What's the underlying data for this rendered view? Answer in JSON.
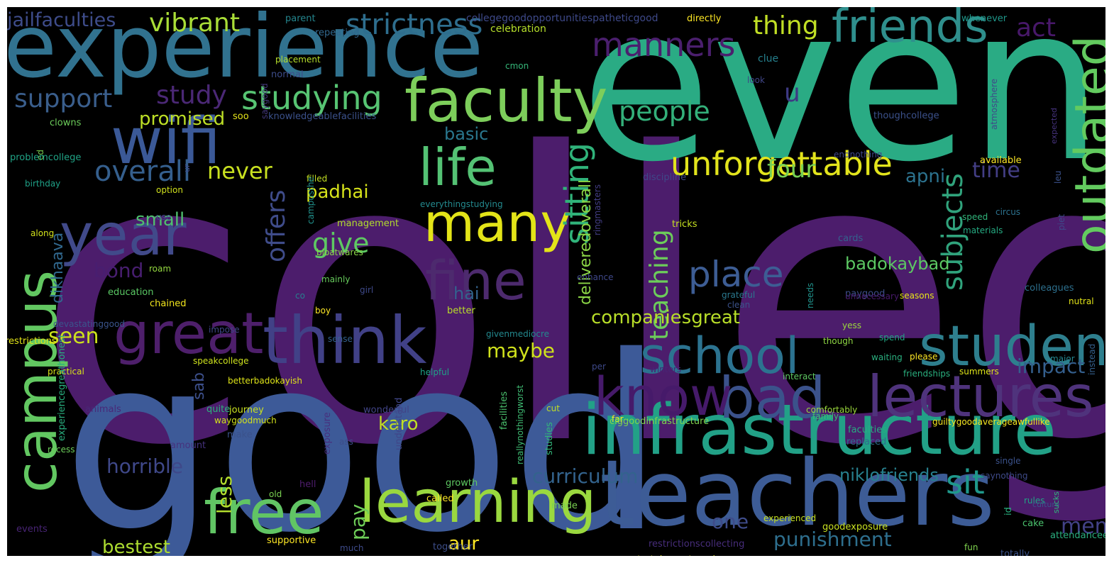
{
  "words": [
    {
      "text": "college",
      "color": "#4c1d6c"
    },
    {
      "text": "even",
      "color": "#2aab84"
    },
    {
      "text": "good",
      "color": "#3d5a98"
    },
    {
      "text": "experience",
      "color": "#31728f"
    },
    {
      "text": "teachers",
      "color": "#3d5c96"
    },
    {
      "text": "infrastructure",
      "color": "#22a187"
    },
    {
      "text": "faculty",
      "color": "#7dce5b"
    },
    {
      "text": "think",
      "color": "#414187"
    },
    {
      "text": "student",
      "color": "#2e7f8e"
    },
    {
      "text": "school",
      "color": "#2c7390"
    },
    {
      "text": "many",
      "color": "#e3e418"
    },
    {
      "text": "fine",
      "color": "#4d2a6e"
    },
    {
      "text": "wifi",
      "color": "#3b5997"
    },
    {
      "text": "life",
      "color": "#54c274"
    },
    {
      "text": "year",
      "color": "#414a8a"
    },
    {
      "text": "great",
      "color": "#4e1f6b"
    },
    {
      "text": "lectures",
      "color": "#4f337c"
    },
    {
      "text": "learning",
      "color": "#9ad83f"
    },
    {
      "text": "free",
      "color": "#61c564"
    },
    {
      "text": "bad",
      "color": "#3b528b"
    },
    {
      "text": "know",
      "color": "#461a6a"
    },
    {
      "text": "campus",
      "color": "#62c761"
    },
    {
      "text": "outdated",
      "color": "#63cb5f"
    },
    {
      "text": "friends",
      "color": "#2f8f8d"
    },
    {
      "text": "studying",
      "color": "#57c473"
    },
    {
      "text": "unforgettable",
      "color": "#e2e41c"
    },
    {
      "text": "place",
      "color": "#3d5d94"
    },
    {
      "text": "sitting",
      "color": "#30b37a"
    },
    {
      "text": "manners",
      "color": "#4b1f6e"
    },
    {
      "text": "strictness",
      "color": "#2e6e8e"
    },
    {
      "text": "vibrant",
      "color": "#a9dd37"
    },
    {
      "text": "jailfaculties",
      "color": "#3e4c8a"
    },
    {
      "text": "support",
      "color": "#3a5e8c"
    },
    {
      "text": "study",
      "color": "#4b2876"
    },
    {
      "text": "u",
      "color": "#3e3a84"
    },
    {
      "text": "people",
      "color": "#33b07a"
    },
    {
      "text": "thing",
      "color": "#c1df25"
    },
    {
      "text": "act",
      "color": "#48186a"
    },
    {
      "text": "overall",
      "color": "#355f8d"
    },
    {
      "text": "never",
      "color": "#c8e020"
    },
    {
      "text": "promised",
      "color": "#bddf26"
    },
    {
      "text": "basic",
      "color": "#2a778e"
    },
    {
      "text": "four",
      "color": "#75d054"
    },
    {
      "text": "time",
      "color": "#433e85"
    },
    {
      "text": "subjects",
      "color": "#30a37c"
    },
    {
      "text": "teaching",
      "color": "#6ccd5a"
    },
    {
      "text": "give",
      "color": "#5ec962"
    },
    {
      "text": "padhai",
      "color": "#d6e21a"
    },
    {
      "text": "small",
      "color": "#4fbf6e"
    },
    {
      "text": "offers",
      "color": "#3f4c8a"
    },
    {
      "text": "bond",
      "color": "#481e70"
    },
    {
      "text": "seen",
      "color": "#cde11d"
    },
    {
      "text": "hai",
      "color": "#33638d"
    },
    {
      "text": "apni",
      "color": "#2c728e"
    },
    {
      "text": "badokaybad",
      "color": "#5cc863"
    },
    {
      "text": "companiesgreat",
      "color": "#b8de29"
    },
    {
      "text": "impact",
      "color": "#345f8d"
    },
    {
      "text": "maybe",
      "color": "#cfe11c"
    },
    {
      "text": "dikhaava",
      "color": "#31688e"
    },
    {
      "text": "sab",
      "color": "#3c4f8a"
    },
    {
      "text": "karo",
      "color": "#c0df25"
    },
    {
      "text": "horrible",
      "color": "#3f4889"
    },
    {
      "text": "less",
      "color": "#b2dd2d"
    },
    {
      "text": "pay",
      "color": "#6ece58"
    },
    {
      "text": "bestest",
      "color": "#addc30"
    },
    {
      "text": "aur",
      "color": "#fde725"
    },
    {
      "text": "curriculum",
      "color": "#33638d"
    },
    {
      "text": "one",
      "color": "#3e4c8a"
    },
    {
      "text": "punishment",
      "color": "#2e6f8e"
    },
    {
      "text": "memories",
      "color": "#424186"
    },
    {
      "text": "sit",
      "color": "#1f988b"
    },
    {
      "text": "niklofriends",
      "color": "#27808e"
    },
    {
      "text": "deliveredoverall",
      "color": "#8bd646"
    },
    {
      "text": "collegegoodopportunitiespatheticgood",
      "color": "#3e4989"
    },
    {
      "text": "directly",
      "color": "#fde725"
    },
    {
      "text": "parent",
      "color": "#24868e"
    },
    {
      "text": "repeating",
      "color": "#31688e"
    },
    {
      "text": "celebration",
      "color": "#b5de2b"
    },
    {
      "text": "whenever",
      "color": "#1f988b"
    },
    {
      "text": "placement",
      "color": "#b5de2b"
    },
    {
      "text": "saygood",
      "color": "#44397d"
    },
    {
      "text": "cmon",
      "color": "#35b779"
    },
    {
      "text": "clue",
      "color": "#26818e"
    },
    {
      "text": "look",
      "color": "#404688"
    },
    {
      "text": "atmosphere",
      "color": "#3f4889"
    },
    {
      "text": "normal",
      "color": "#3d4d8a"
    },
    {
      "text": "soo",
      "color": "#e5e419"
    },
    {
      "text": "knowledgeablefacilities",
      "color": "#3b518b"
    },
    {
      "text": "thoughcollege",
      "color": "#3b518b"
    },
    {
      "text": "clowns",
      "color": "#6ccd5a"
    },
    {
      "text": "expected",
      "color": "#46337e"
    },
    {
      "text": "ed",
      "color": "#7ad151"
    },
    {
      "text": "endnothing",
      "color": "#3f4889"
    },
    {
      "text": "problemcollege",
      "color": "#20a486"
    },
    {
      "text": "ur",
      "color": "#3e4a89"
    },
    {
      "text": "birthday",
      "color": "#1fa187"
    },
    {
      "text": "filled",
      "color": "#c2df23"
    },
    {
      "text": "discipline",
      "color": "#3f4788"
    },
    {
      "text": "available",
      "color": "#fde725"
    },
    {
      "text": "leu",
      "color": "#3b528b"
    },
    {
      "text": "option",
      "color": "#d0e11c"
    },
    {
      "text": "everythingstudying",
      "color": "#23898e"
    },
    {
      "text": "use",
      "color": "#3f4889"
    },
    {
      "text": "campusthe",
      "color": "#21918c"
    },
    {
      "text": "piet",
      "color": "#3e4a89"
    },
    {
      "text": "along",
      "color": "#d2e21b"
    },
    {
      "text": "ringmasters",
      "color": "#433e85"
    },
    {
      "text": "speed",
      "color": "#31b57b"
    },
    {
      "text": "circus",
      "color": "#2c728e"
    },
    {
      "text": "management",
      "color": "#b2dd2d"
    },
    {
      "text": "tricks",
      "color": "#c5e021"
    },
    {
      "text": "materials",
      "color": "#25ab82"
    },
    {
      "text": "cards",
      "color": "#34618d"
    },
    {
      "text": "bloatwares",
      "color": "#89d548"
    },
    {
      "text": "roam",
      "color": "#94d840"
    },
    {
      "text": "enhance",
      "color": "#3f4889"
    },
    {
      "text": "mainly",
      "color": "#67cc5c"
    },
    {
      "text": "education",
      "color": "#5ac864"
    },
    {
      "text": "girl",
      "color": "#3e4989"
    },
    {
      "text": "co",
      "color": "#277f8e"
    },
    {
      "text": "grateful",
      "color": "#2a788e"
    },
    {
      "text": "paygood",
      "color": "#3d4e8a"
    },
    {
      "text": "clean",
      "color": "#3b528b"
    },
    {
      "text": "seasons",
      "color": "#e7e419"
    },
    {
      "text": "needs",
      "color": "#20928c"
    },
    {
      "text": "unnecessary",
      "color": "#48196b"
    },
    {
      "text": "colleagues",
      "color": "#2d708e"
    },
    {
      "text": "chained",
      "color": "#f1e51d"
    },
    {
      "text": "boy",
      "color": "#fde725"
    },
    {
      "text": "better",
      "color": "#bade28"
    },
    {
      "text": "nutral",
      "color": "#e2e418"
    },
    {
      "text": "impose",
      "color": "#3f4788"
    },
    {
      "text": "givenmediocre",
      "color": "#23898e"
    },
    {
      "text": "devastatinggood",
      "color": "#3a548c"
    },
    {
      "text": "sense",
      "color": "#34618d"
    },
    {
      "text": "yess",
      "color": "#9bd93c"
    },
    {
      "text": "though",
      "color": "#8fd744"
    },
    {
      "text": "spend",
      "color": "#21a685"
    },
    {
      "text": "instead",
      "color": "#35608d"
    },
    {
      "text": "restrictions",
      "color": "#e2e418"
    },
    {
      "text": "speakcollege",
      "color": "#cde11d"
    },
    {
      "text": "betterbadokayish",
      "color": "#dde318"
    },
    {
      "text": "please",
      "color": "#fde725"
    },
    {
      "text": "waiting",
      "color": "#2ab07f"
    },
    {
      "text": "practical",
      "color": "#d8e219"
    },
    {
      "text": "helpful",
      "color": "#1fa287"
    },
    {
      "text": "per",
      "color": "#3e4989"
    },
    {
      "text": "winters",
      "color": "#482475"
    },
    {
      "text": "interact",
      "color": "#5ec962"
    },
    {
      "text": "friendships",
      "color": "#2ab07f"
    },
    {
      "text": "summers",
      "color": "#dde318"
    },
    {
      "text": "major",
      "color": "#25858e"
    },
    {
      "text": "animals",
      "color": "#482878"
    },
    {
      "text": "quite",
      "color": "#2db27d"
    },
    {
      "text": "journey",
      "color": "#c8e020"
    },
    {
      "text": "waygoodmuch",
      "color": "#d2e21b"
    },
    {
      "text": "wonderful",
      "color": "#414487"
    },
    {
      "text": "cut",
      "color": "#c0df25"
    },
    {
      "text": "comfortably",
      "color": "#9bd93c"
    },
    {
      "text": "family",
      "color": "#3fbc73"
    },
    {
      "text": "far",
      "color": "#fde725"
    },
    {
      "text": "clggoodinfrastructure",
      "color": "#7fd34e"
    },
    {
      "text": "faculties",
      "color": "#27ad81"
    },
    {
      "text": "guiltygoodaverageawfullike",
      "color": "#f6e620"
    },
    {
      "text": "experiencegreathonest",
      "color": "#29af7f"
    },
    {
      "text": "amount",
      "color": "#46327e"
    },
    {
      "text": "make",
      "color": "#3b528b"
    },
    {
      "text": "exposure",
      "color": "#472f7d"
    },
    {
      "text": "facilities",
      "color": "#4ac16d"
    },
    {
      "text": "reallynothingworst",
      "color": "#3fbc73"
    },
    {
      "text": "studies",
      "color": "#32b67a"
    },
    {
      "text": "understand",
      "color": "#404688"
    },
    {
      "text": "replaced",
      "color": "#2e6e8e"
    },
    {
      "text": "single",
      "color": "#3b528b"
    },
    {
      "text": "saynothing",
      "color": "#3e4a89"
    },
    {
      "text": "recess",
      "color": "#6ccd5a"
    },
    {
      "text": "ass",
      "color": "#3d4d8a"
    },
    {
      "text": "rules",
      "color": "#20a486"
    },
    {
      "text": "culture",
      "color": "#3b528b"
    },
    {
      "text": "old",
      "color": "#7ad151"
    },
    {
      "text": "hell",
      "color": "#4f1d6e"
    },
    {
      "text": "growth",
      "color": "#5ec962"
    },
    {
      "text": "called",
      "color": "#fde725"
    },
    {
      "text": "made",
      "color": "#7ad151"
    },
    {
      "text": "experienced",
      "color": "#c5e021"
    },
    {
      "text": "goodexposure",
      "color": "#c8e020"
    },
    {
      "text": "id",
      "color": "#29af7f"
    },
    {
      "text": "sucks",
      "color": "#31b57b"
    },
    {
      "text": "cake",
      "color": "#4ac16d"
    },
    {
      "text": "events",
      "color": "#482475"
    },
    {
      "text": "supportive",
      "color": "#fde725"
    },
    {
      "text": "much",
      "color": "#3e4a89"
    },
    {
      "text": "together",
      "color": "#3d4e8a"
    },
    {
      "text": "restrictionscollecting",
      "color": "#472d7b"
    },
    {
      "text": "entertainmentgood",
      "color": "#e5e419"
    },
    {
      "text": "fun",
      "color": "#7fd34e"
    },
    {
      "text": "attendanceexperience",
      "color": "#2ab07f"
    },
    {
      "text": "totally",
      "color": "#3b528b"
    },
    {
      "text": "kept",
      "color": "#fde725"
    },
    {
      "text": "goodso",
      "color": "#433e85"
    }
  ]
}
